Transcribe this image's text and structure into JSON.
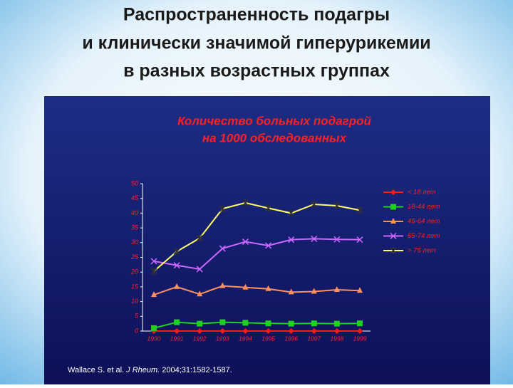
{
  "slide_title": [
    "Распространенность подагры",
    "и клинически значимой гиперурикемии",
    "в разных возрастных группах"
  ],
  "citation": {
    "authors": "Wallace S. et al.",
    "journal": "J Rheum.",
    "reference": "2004;31:1582-1587."
  },
  "chart_data": {
    "type": "line",
    "title": [
      "Количество больных подагрой",
      "на 1000 обследованных"
    ],
    "categories": [
      "1990",
      "1991",
      "1992",
      "1993",
      "1994",
      "1995",
      "1996",
      "1997",
      "1998",
      "1999"
    ],
    "ylim": [
      0,
      50
    ],
    "yticks": [
      0,
      5,
      10,
      15,
      20,
      25,
      30,
      35,
      40,
      45,
      50
    ],
    "grid": false,
    "legend": "right",
    "series": [
      {
        "name": "< 18 лет",
        "color": "#ff1a1a",
        "marker": "diamond",
        "values": [
          0,
          0,
          0,
          0,
          0,
          0,
          0,
          0,
          0,
          0
        ]
      },
      {
        "name": "18-44 лет",
        "color": "#1fd21f",
        "marker": "square",
        "values": [
          1,
          3,
          2.5,
          3,
          2.8,
          2.6,
          2.5,
          2.6,
          2.5,
          2.6
        ]
      },
      {
        "name": "45-64 лет",
        "color": "#ff9060",
        "marker": "triangle",
        "values": [
          12.3,
          15,
          12.5,
          15.3,
          14.8,
          14.3,
          13.2,
          13.4,
          14,
          13.7
        ]
      },
      {
        "name": "65-74 лет",
        "color": "#cc66ff",
        "marker": "x",
        "values": [
          23.7,
          22.3,
          21,
          28,
          30.3,
          29,
          31,
          31.3,
          31.1,
          31
        ]
      },
      {
        "name": "> 75 лет",
        "color": "#ffff66",
        "marker": "asterisk",
        "values": [
          20.3,
          27,
          31.5,
          41.5,
          43.5,
          41.7,
          40,
          43,
          42.5,
          41
        ]
      }
    ]
  }
}
